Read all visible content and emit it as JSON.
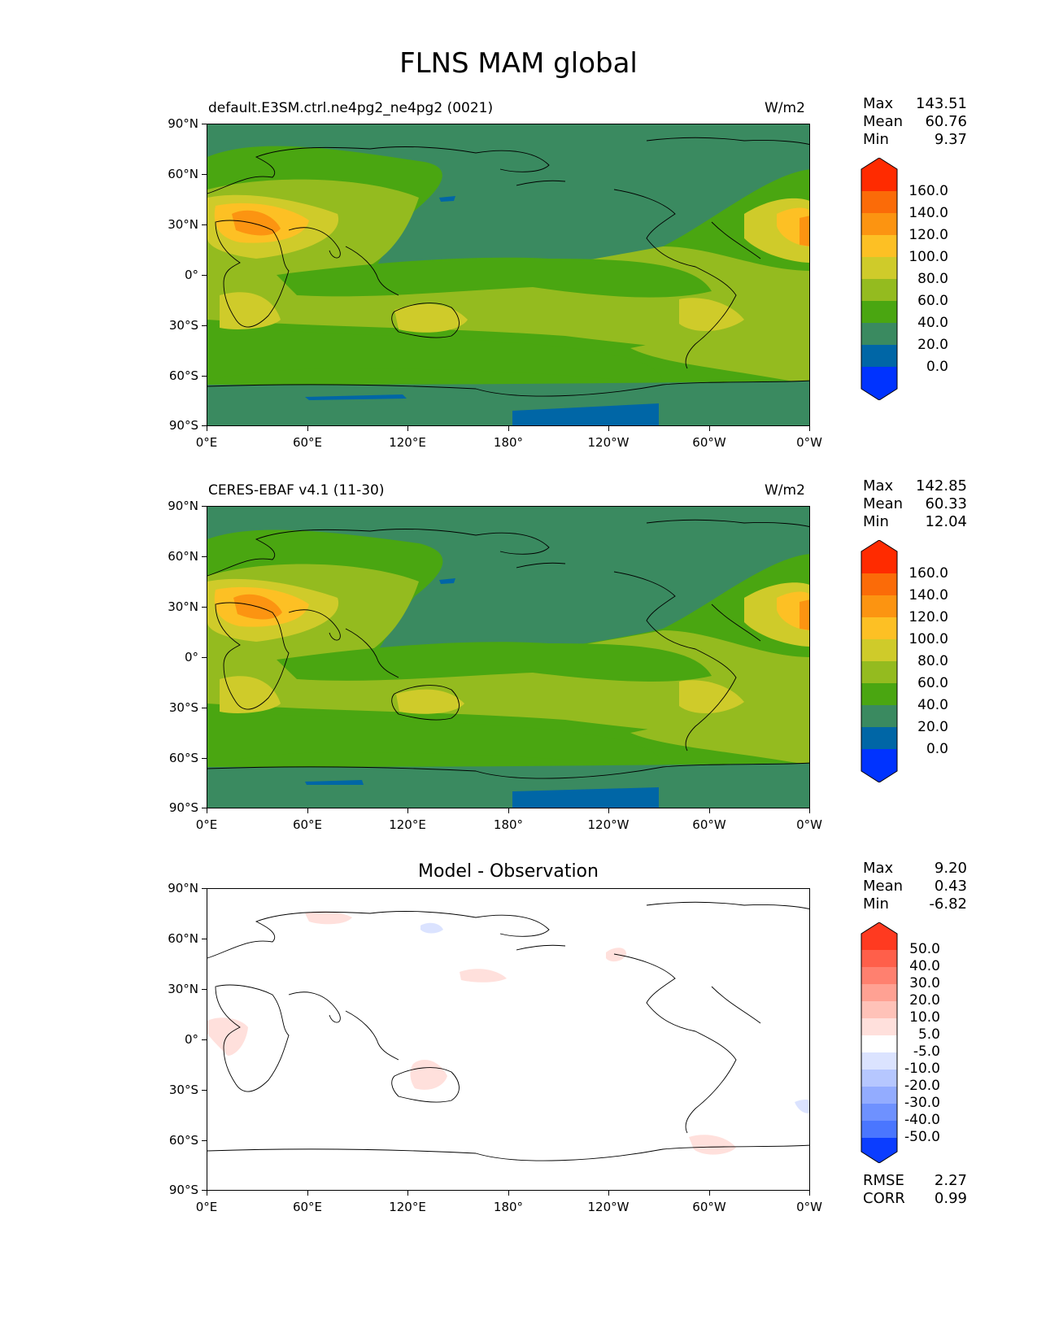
{
  "title": "FLNS MAM global",
  "xticks": [
    "0°E",
    "60°E",
    "120°E",
    "180°",
    "120°W",
    "60°W",
    "0°W"
  ],
  "yticks": [
    "90°N",
    "60°N",
    "30°N",
    "0°",
    "30°S",
    "60°S",
    "90°S"
  ],
  "colors": {
    "abs_levels": [
      "#0033ff",
      "#0066a6",
      "#3a8a60",
      "#4aa611",
      "#94bb1f",
      "#cfcb2a",
      "#fdc024",
      "#fc9411",
      "#fb6b08",
      "#ff2b00"
    ],
    "diff_levels": [
      "#0b3dff",
      "#2b5cff",
      "#4a76ff",
      "#6e91ff",
      "#93acff",
      "#b6c7ff",
      "#dbe3ff",
      "#ffffff",
      "#ffe0dc",
      "#ffc2b8",
      "#ffa193",
      "#ff806f",
      "#ff5f4a",
      "#ff3a20"
    ]
  },
  "panels": [
    {
      "label_left": "default.E3SM.ctrl.ne4pg2_ne4pg2 (0021)",
      "label_right": "W/m2",
      "stats": [
        {
          "name": "Max",
          "value": "143.51"
        },
        {
          "name": "Mean",
          "value": "60.76"
        },
        {
          "name": "Min",
          "value": "9.37"
        }
      ],
      "colorbar_labels": [
        "160.0",
        "140.0",
        "120.0",
        "100.0",
        "80.0",
        "60.0",
        "40.0",
        "20.0",
        "0.0"
      ]
    },
    {
      "label_left": "CERES-EBAF v4.1 (11-30)",
      "label_right": "W/m2",
      "stats": [
        {
          "name": "Max",
          "value": "142.85"
        },
        {
          "name": "Mean",
          "value": "60.33"
        },
        {
          "name": "Min",
          "value": "12.04"
        }
      ],
      "colorbar_labels": [
        "160.0",
        "140.0",
        "120.0",
        "100.0",
        "80.0",
        "60.0",
        "40.0",
        "20.0",
        "0.0"
      ]
    },
    {
      "title": "Model - Observation",
      "stats": [
        {
          "name": "Max",
          "value": "9.20"
        },
        {
          "name": "Mean",
          "value": "0.43"
        },
        {
          "name": "Min",
          "value": "-6.82"
        }
      ],
      "colorbar_labels": [
        "50.0",
        "40.0",
        "30.0",
        "20.0",
        "10.0",
        "5.0",
        "-5.0",
        "-10.0",
        "-20.0",
        "-30.0",
        "-40.0",
        "-50.0"
      ],
      "extra_stats": [
        {
          "name": "RMSE",
          "value": "2.27"
        },
        {
          "name": "CORR",
          "value": "0.99"
        }
      ]
    }
  ]
}
